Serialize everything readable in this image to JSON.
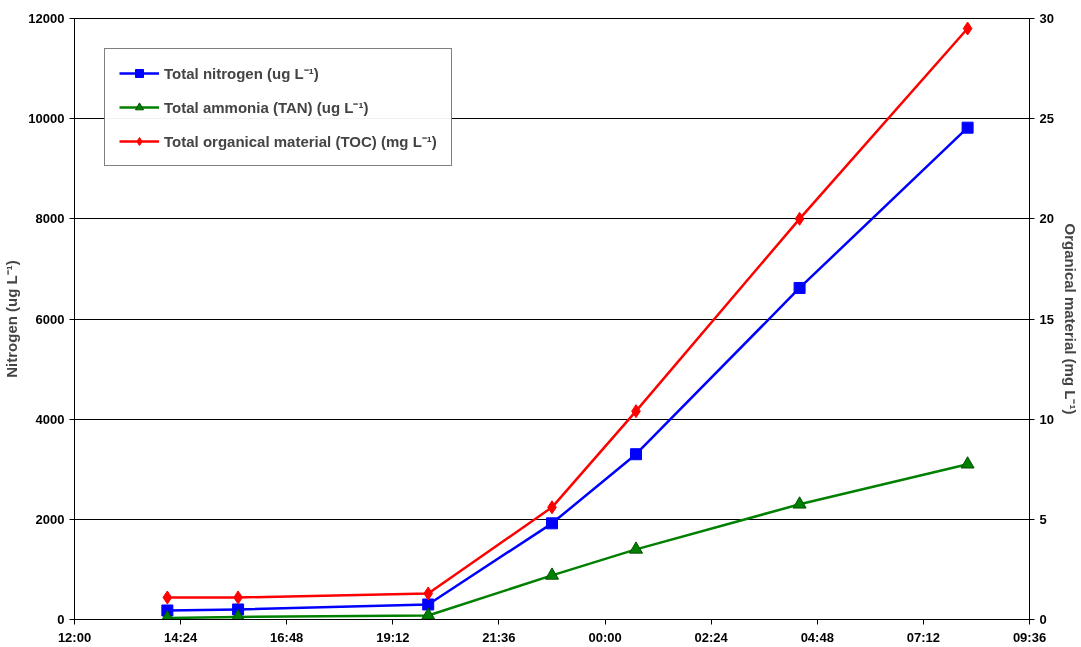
{
  "chart_data": {
    "type": "line",
    "ylabel": "Nitrogen (ug L⁻¹)",
    "y2label": "Organical material (mg L⁻¹)",
    "x": [
      "2000-01-01T14:06",
      "2000-01-01T15:42",
      "2000-01-01T20:00",
      "2000-01-01T22:48",
      "2000-01-02T00:42",
      "2000-01-02T04:24",
      "2000-01-02T08:12"
    ],
    "series": [
      {
        "name": "Total nitrogen (ug L⁻¹)",
        "color": "#0000ff",
        "marker": "square",
        "values": [
          180,
          200,
          300,
          1920,
          3300,
          6620,
          9820
        ]
      },
      {
        "name": "Total ammonia (TAN) (ug L⁻¹)",
        "color": "#008000",
        "marker": "triangle",
        "values": [
          30,
          50,
          80,
          880,
          1400,
          2300,
          3100
        ]
      },
      {
        "name": "Total organical material (TOC) (mg L⁻¹)",
        "color": "#ff0000",
        "marker": "diamond",
        "axis": "y2",
        "values": [
          1.1,
          1.1,
          1.3,
          5.6,
          10.4,
          20,
          29.5
        ]
      }
    ],
    "xlim": [
      "2000-01-01T12:00",
      "2000-01-02T09:36"
    ],
    "xticks": [
      {
        "value": "2000-01-01T12:00",
        "label": "12:00"
      },
      {
        "value": "2000-01-01T14:24",
        "label": "14:24"
      },
      {
        "value": "2000-01-01T16:48",
        "label": "16:48"
      },
      {
        "value": "2000-01-01T19:12",
        "label": "19:12"
      },
      {
        "value": "2000-01-01T21:36",
        "label": "21:36"
      },
      {
        "value": "2000-01-02T00:00",
        "label": "00:00"
      },
      {
        "value": "2000-01-02T02:24",
        "label": "02:24"
      },
      {
        "value": "2000-01-02T04:48",
        "label": "04:48"
      },
      {
        "value": "2000-01-02T07:12",
        "label": "07:12"
      },
      {
        "value": "2000-01-02T09:36",
        "label": "09:36"
      }
    ],
    "ylim": [
      0,
      12000
    ],
    "yticks": [
      0,
      2000,
      4000,
      6000,
      8000,
      10000,
      12000
    ],
    "y2lim": [
      0,
      30
    ],
    "y2ticks": [
      0,
      5,
      10,
      15,
      20,
      25,
      30
    ],
    "grid": "y",
    "legend": "top left",
    "line_style": "solid"
  }
}
